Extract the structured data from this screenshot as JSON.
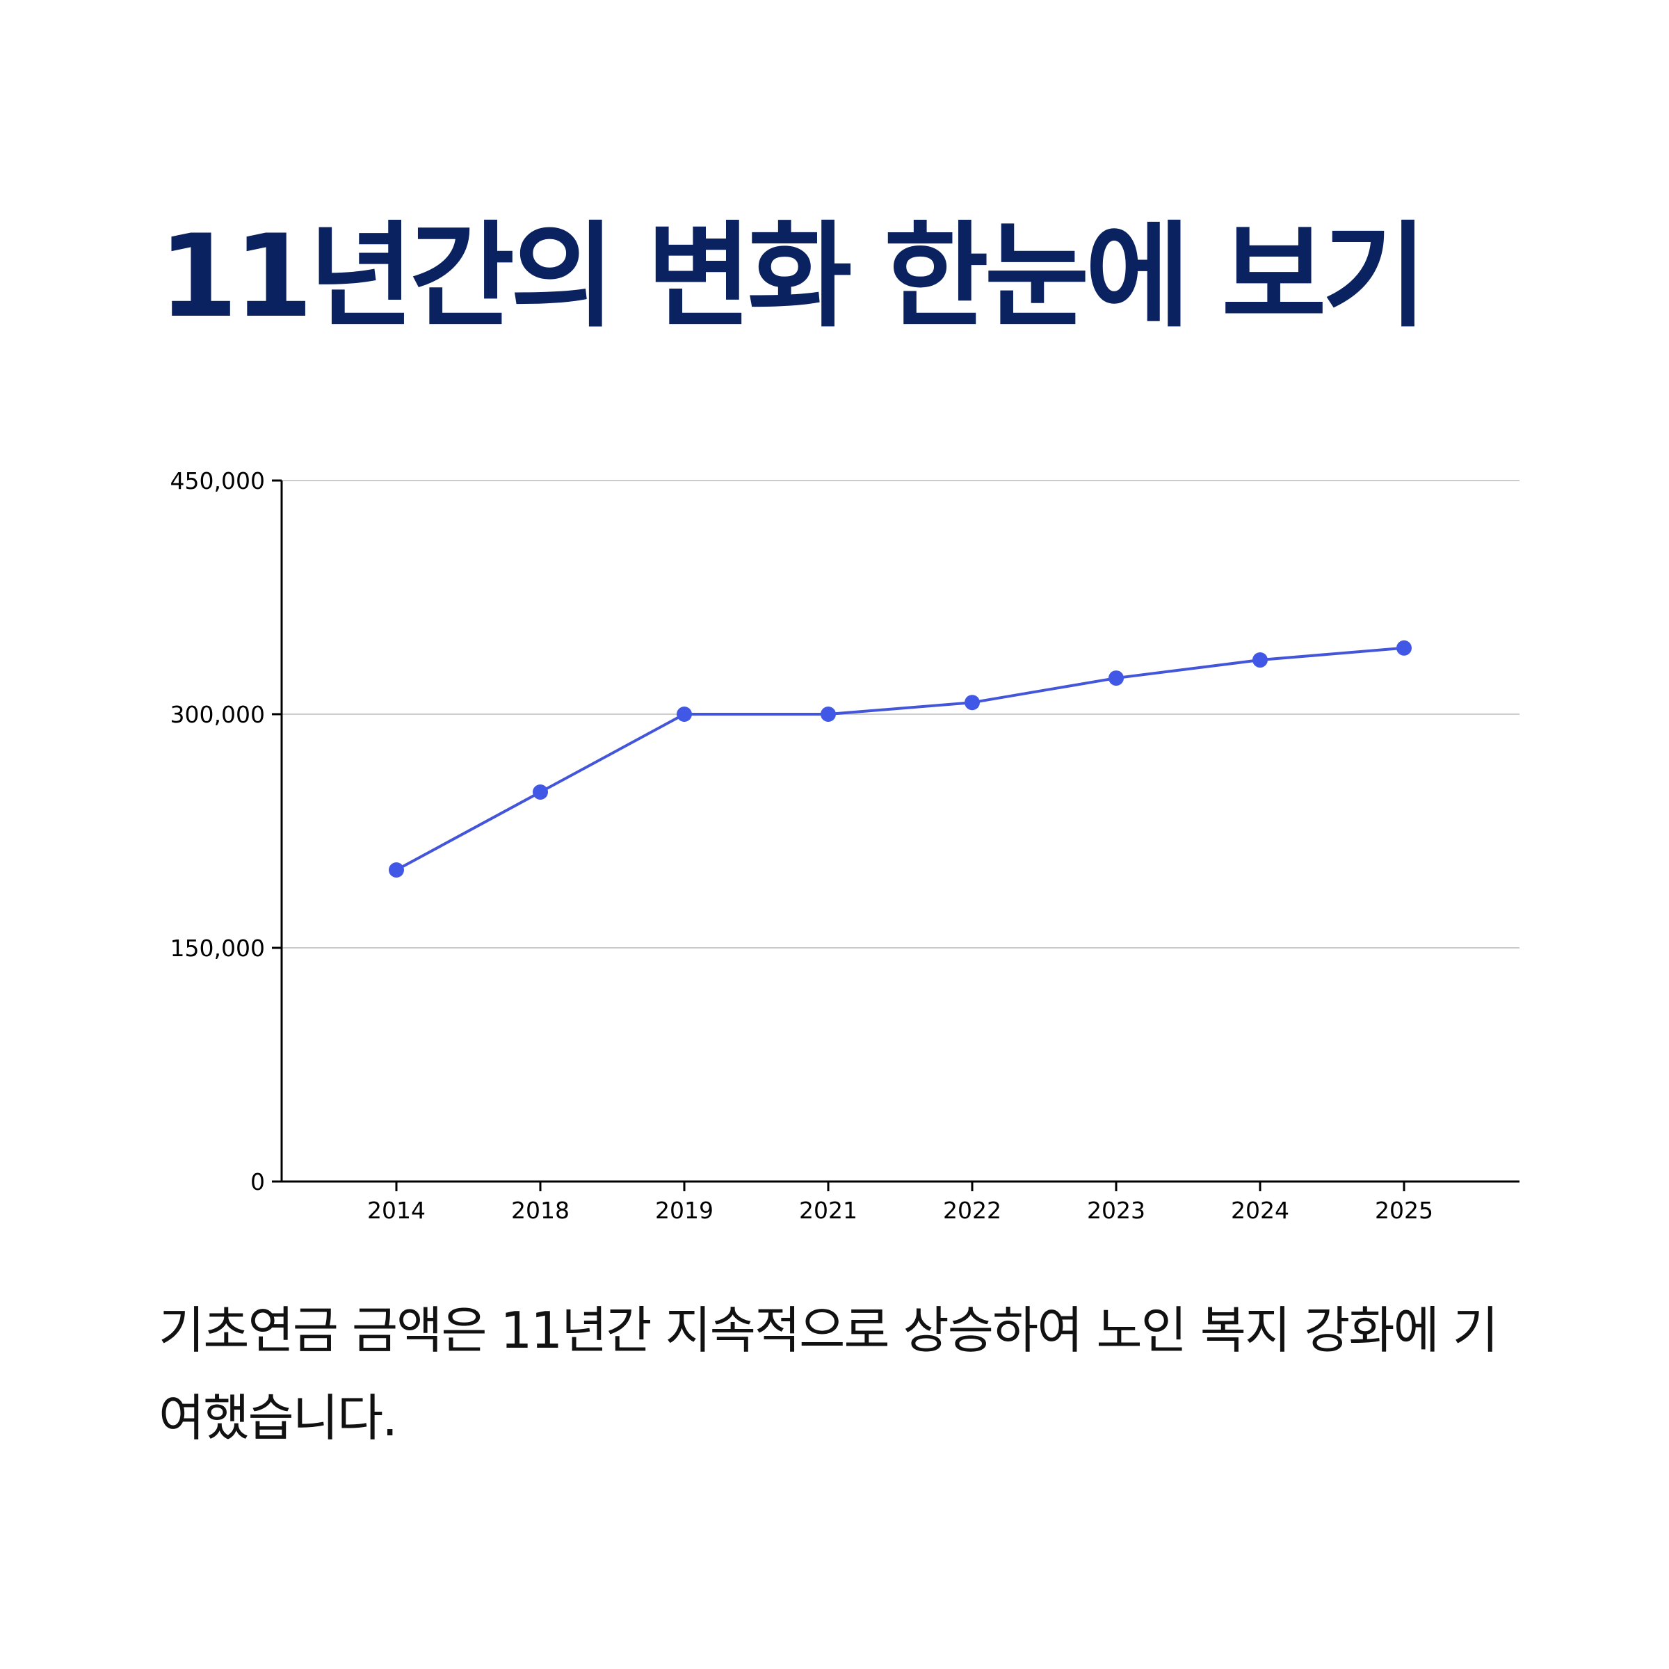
{
  "page": {
    "title": "11년간의 변화 한눈에 보기",
    "caption": "기초연금 금액은 11년간 지속적으로 상승하여 노인 복지 강화에 기여했습니다."
  },
  "colors": {
    "title": "#0b2260",
    "line": "#4355d8",
    "marker": "#4158e6",
    "grid": "#cccccc",
    "axis": "#000000"
  },
  "chart_data": {
    "type": "line",
    "title": "",
    "xlabel": "",
    "ylabel": "",
    "categories": [
      "2014",
      "2018",
      "2019",
      "2021",
      "2022",
      "2023",
      "2024",
      "2025"
    ],
    "series": [
      {
        "values": [
          200000,
          250000,
          300000,
          300000,
          307500,
          323180,
          334810,
          342510
        ]
      }
    ],
    "ylim": [
      0,
      450000
    ],
    "yticks": [
      0,
      150000,
      300000,
      450000
    ],
    "ytick_labels": [
      "0",
      "150,000",
      "300,000",
      "450,000"
    ],
    "grid": true,
    "legend": "none"
  }
}
